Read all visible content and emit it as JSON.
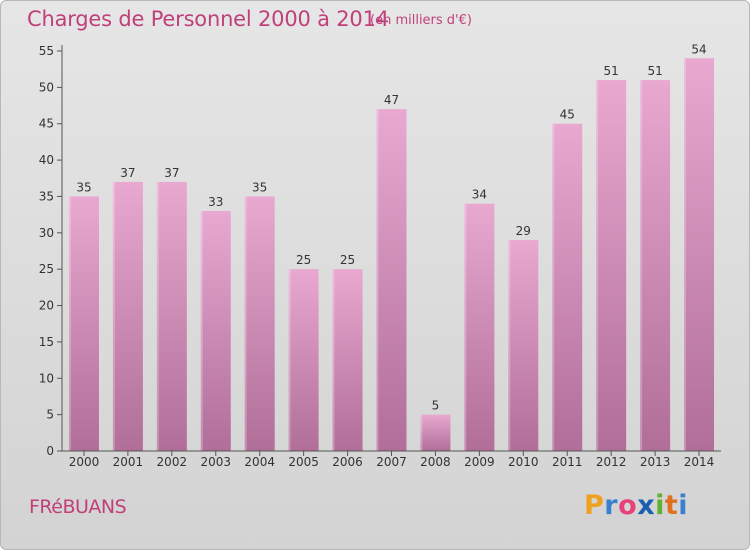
{
  "header": {
    "title": "Charges de Personnel 2000 à 2014",
    "subtitle": "(en milliers d'€)"
  },
  "footer": {
    "commune": "FRéBUANS",
    "logo_text": "Proxiti",
    "logo_letters": [
      {
        "char": "P",
        "color": "#f0a020"
      },
      {
        "char": "r",
        "color": "#3a7fd0"
      },
      {
        "char": "o",
        "color": "#e8407a"
      },
      {
        "char": "x",
        "color": "#1a5fb0"
      },
      {
        "char": "i",
        "color": "#60b030"
      },
      {
        "char": "t",
        "color": "#e07020"
      },
      {
        "char": "i",
        "color": "#3a7fd0"
      }
    ]
  },
  "colors": {
    "bar_top": "#e8a8d0",
    "bar_bottom": "#b06e98",
    "title": "#c0407a"
  },
  "chart_data": {
    "type": "bar",
    "categories": [
      "2000",
      "2001",
      "2002",
      "2003",
      "2004",
      "2005",
      "2006",
      "2007",
      "2008",
      "2009",
      "2010",
      "2011",
      "2012",
      "2013",
      "2014"
    ],
    "values": [
      35,
      37,
      37,
      33,
      35,
      25,
      25,
      47,
      5,
      34,
      29,
      45,
      51,
      51,
      54
    ],
    "title": "Charges de Personnel 2000 à 2014",
    "subtitle": "(en milliers d'€)",
    "ylim": [
      0,
      55
    ],
    "yticks": [
      0,
      5,
      10,
      15,
      20,
      25,
      30,
      35,
      40,
      45,
      50,
      55
    ],
    "grid": false,
    "legend": "none"
  }
}
